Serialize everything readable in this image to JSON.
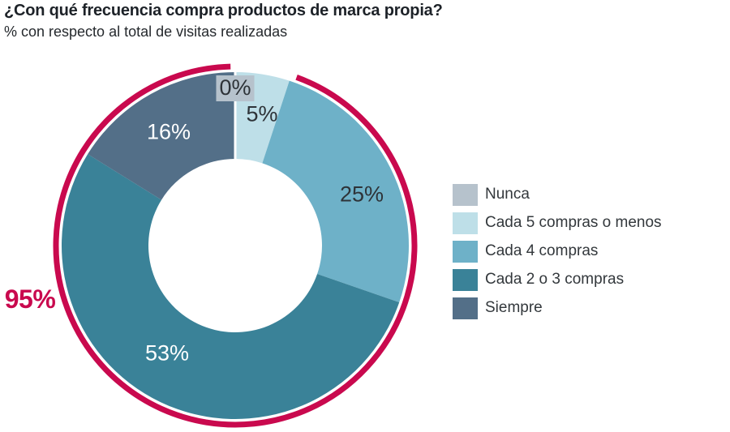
{
  "chart_data": {
    "type": "pie",
    "variant": "donut",
    "title": "¿Con qué frecuencia compra productos de marca propia?",
    "subtitle": "% con respecto al total de visitas realizadas",
    "legend_position": "right",
    "slices": [
      {
        "name": "Nunca",
        "value": 0,
        "label": "0%",
        "color": "#b6c2cc",
        "label_style": "dark-on-gray-box"
      },
      {
        "name": "Cada 5 compras o menos",
        "value": 5,
        "label": "5%",
        "color": "#bedfe8",
        "label_style": "dark"
      },
      {
        "name": "Cada 4 compras",
        "value": 25,
        "label": "25%",
        "color": "#6eb1c8",
        "label_style": "dark"
      },
      {
        "name": "Cada 2 o 3 compras",
        "value": 53,
        "label": "53%",
        "color": "#3a8298",
        "label_style": "white"
      },
      {
        "name": "Siempre",
        "value": 16,
        "label": "16%",
        "color": "#536f88",
        "label_style": "white"
      }
    ],
    "highlight": {
      "label": "95%",
      "value": 95,
      "color": "#c9094e",
      "start_deg": 20,
      "end_deg": 358.5
    }
  }
}
